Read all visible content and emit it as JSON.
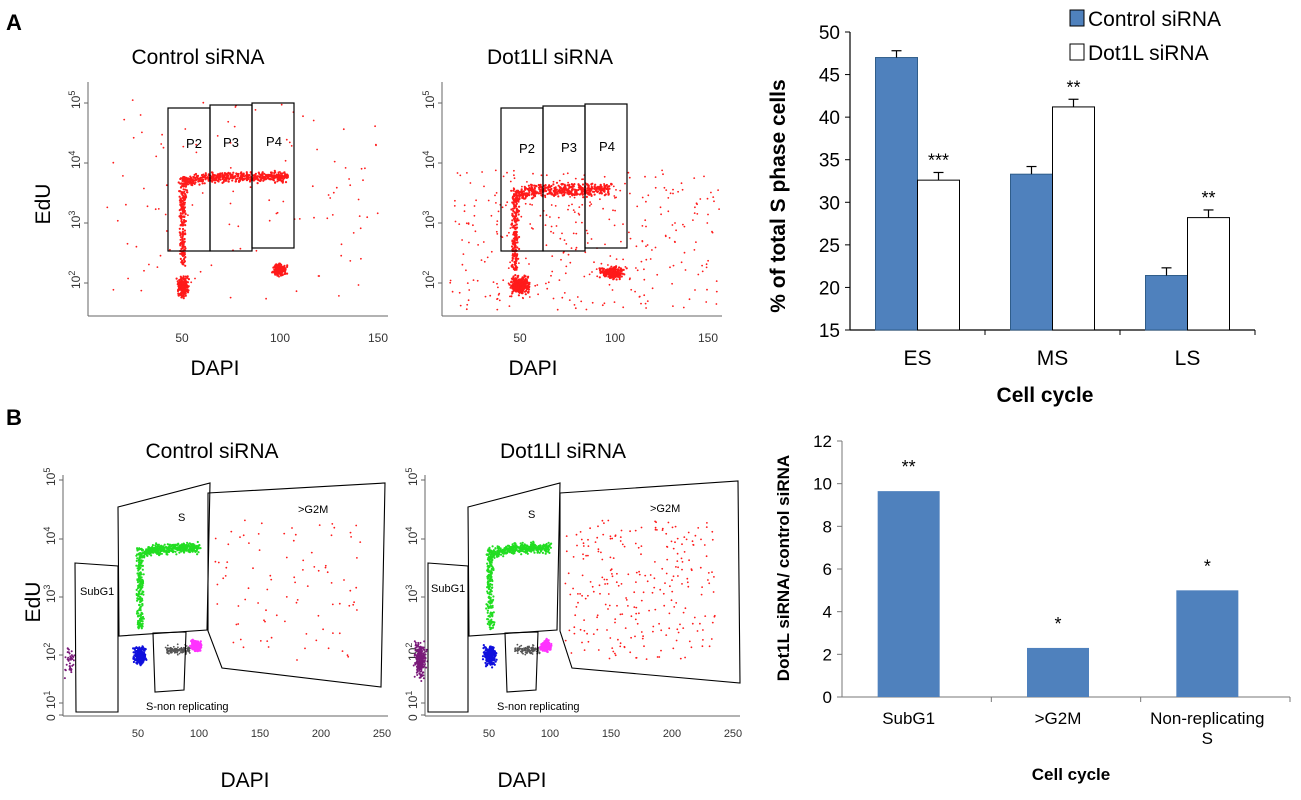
{
  "panels": {
    "A": {
      "letter": "A",
      "flow_left": {
        "title": "Control siRNA",
        "xlabel": "DAPI",
        "ylabel": "EdU",
        "gates": [
          "P2",
          "P3",
          "P4"
        ],
        "xticks": [
          "50",
          "100",
          "150"
        ],
        "yticks": [
          "10",
          "10",
          "10",
          "10"
        ],
        "yexp": [
          "2",
          "3",
          "4",
          "5"
        ]
      },
      "flow_right": {
        "title": "Dot1Ll siRNA",
        "xlabel": "DAPI",
        "ylabel": "",
        "gates": [
          "P2",
          "P3",
          "P4"
        ],
        "xticks": [
          "50",
          "100",
          "150"
        ],
        "yticks": [
          "10",
          "10",
          "10",
          "10"
        ],
        "yexp": [
          "2",
          "3",
          "4",
          "5"
        ]
      }
    },
    "B": {
      "letter": "B",
      "flow_left": {
        "title": "Control siRNA",
        "xlabel": "DAPI",
        "ylabel": "EdU",
        "gates": {
          "subg1": "SubG1",
          "s": "S",
          "g2m": ">G2M",
          "snr": "S-non replicating"
        },
        "xticks": [
          "50",
          "100",
          "150",
          "200",
          "250"
        ],
        "yticks": [
          "0",
          "10",
          "10",
          "10",
          "10",
          "10"
        ],
        "yexp": [
          "",
          "1",
          "2",
          "3",
          "4",
          "5"
        ]
      },
      "flow_right": {
        "title": "Dot1Ll siRNA",
        "xlabel": "DAPI",
        "ylabel": "",
        "gates": {
          "subg1": "SubG1",
          "s": "S",
          "g2m": ">G2M",
          "snr": "S-non replicating"
        },
        "xticks": [
          "50",
          "100",
          "150",
          "200",
          "250"
        ],
        "yticks": [
          "0",
          "10",
          "10",
          "10",
          "10",
          "10"
        ],
        "yexp": [
          "",
          "1",
          "2",
          "3",
          "4",
          "5"
        ]
      }
    }
  },
  "chart_data": [
    {
      "type": "bar",
      "title": "",
      "xlabel": "Cell cycle",
      "ylabel": "% of total S phase cells",
      "categories": [
        "ES",
        "MS",
        "LS"
      ],
      "ylim": [
        15,
        50
      ],
      "yticks": [
        15,
        20,
        25,
        30,
        35,
        40,
        45,
        50
      ],
      "legend": "top-right",
      "series": [
        {
          "name": "Control siRNA",
          "color": "#4f81bd",
          "values": [
            47.0,
            33.3,
            21.4
          ],
          "errors": [
            0.8,
            0.9,
            0.9
          ],
          "stars": [
            "",
            "",
            ""
          ]
        },
        {
          "name": "Dot1L siRNA",
          "color": "#ffffff",
          "values": [
            32.6,
            41.2,
            28.2
          ],
          "errors": [
            0.9,
            0.9,
            0.9
          ],
          "stars": [
            "***",
            "**",
            "**"
          ]
        }
      ]
    },
    {
      "type": "bar",
      "title": "",
      "xlabel": "Cell cycle",
      "ylabel": "Dot1L siRNA/ control siRNA",
      "categories": [
        "SubG1",
        ">G2M",
        "Non-replicating S"
      ],
      "category_lines": [
        [
          "SubG1"
        ],
        [
          ">G2M"
        ],
        [
          "Non-replicating",
          "S"
        ]
      ],
      "ylim": [
        0,
        12
      ],
      "yticks": [
        0,
        2,
        4,
        6,
        8,
        10,
        12
      ],
      "series": [
        {
          "name": "",
          "color": "#4f81bd",
          "values": [
            9.65,
            2.3,
            5.0
          ],
          "stars": [
            "**",
            "*",
            "*"
          ]
        }
      ]
    }
  ]
}
